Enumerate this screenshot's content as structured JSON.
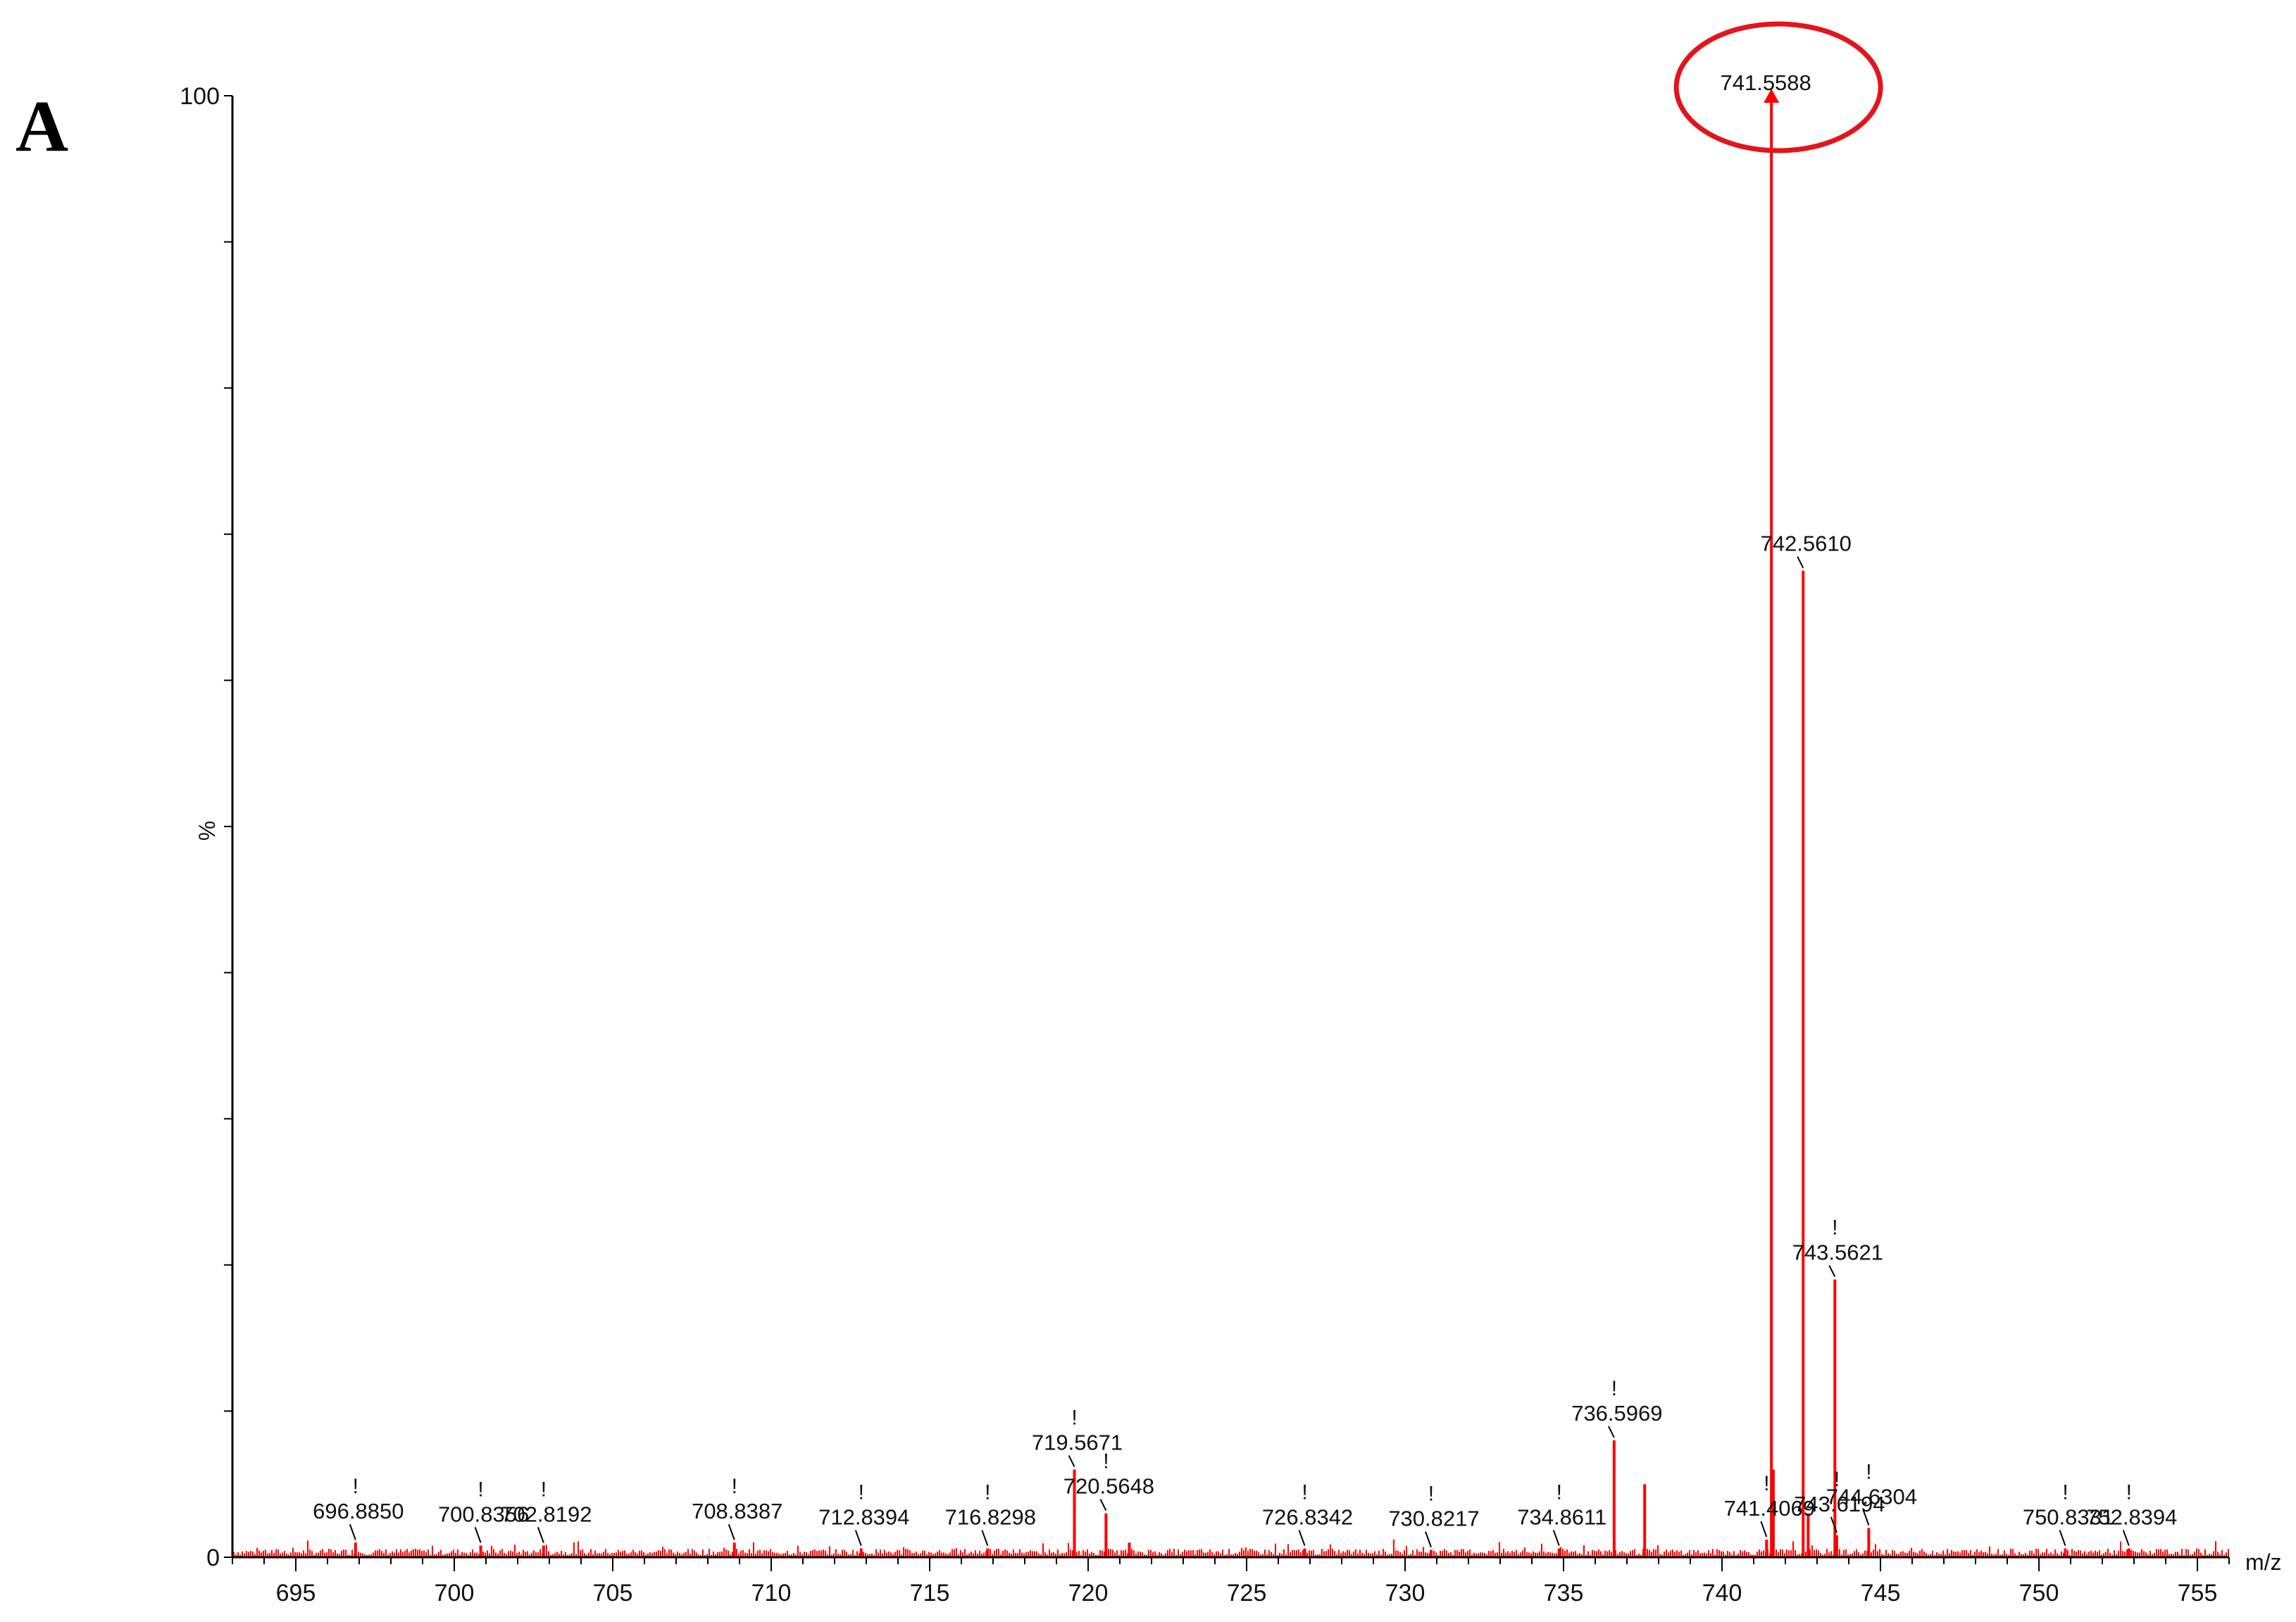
{
  "panel_label": "A",
  "chart_data": {
    "type": "line",
    "title": "",
    "xlabel": "m/z",
    "ylabel": "%",
    "xlim": [
      693,
      756
    ],
    "ylim": [
      0,
      100
    ],
    "x_ticks": [
      695,
      700,
      705,
      710,
      715,
      720,
      725,
      730,
      735,
      740,
      745,
      750,
      755
    ],
    "y_tick_labels": [
      "0",
      "100"
    ],
    "colors": {
      "spectrum": "#ff0000",
      "highlight": "#e3141b",
      "axis": "#000000"
    },
    "base_peak": {
      "label": "741.5588",
      "x": 741.5588,
      "y": 100,
      "highlighted": true
    },
    "peaks": [
      {
        "label": "696.8850",
        "x": 696.885,
        "y": 1.0,
        "marker": true
      },
      {
        "label": "700.8356",
        "x": 700.8356,
        "y": 0.8,
        "marker": true
      },
      {
        "label": "702.8192",
        "x": 702.8192,
        "y": 0.8,
        "marker": true
      },
      {
        "label": "708.8387",
        "x": 708.8387,
        "y": 1.0,
        "marker": true
      },
      {
        "label": "712.8394",
        "x": 712.8394,
        "y": 0.6,
        "marker": true
      },
      {
        "label": "716.8298",
        "x": 716.8298,
        "y": 0.6,
        "marker": true
      },
      {
        "label": "719.5671",
        "x": 719.5671,
        "y": 6.0,
        "marker": true
      },
      {
        "label": "720.5648",
        "x": 720.5648,
        "y": 3.0,
        "marker": true
      },
      {
        "label": "726.8342",
        "x": 726.8342,
        "y": 0.6,
        "marker": true
      },
      {
        "label": "730.8217",
        "x": 730.8217,
        "y": 0.5,
        "marker": true
      },
      {
        "label": "734.8611",
        "x": 734.8611,
        "y": 0.6,
        "marker": true
      },
      {
        "label": "736.5969",
        "x": 736.5969,
        "y": 8.0,
        "marker": true
      },
      {
        "label": "741.4069",
        "x": 741.4069,
        "y": 1.2,
        "marker": true
      },
      {
        "label": "742.5610",
        "x": 742.561,
        "y": 67.5,
        "marker": false
      },
      {
        "label": "743.5621",
        "x": 743.5621,
        "y": 19.0,
        "marker": true
      },
      {
        "label": "743.6194",
        "x": 743.6194,
        "y": 1.5,
        "marker": true
      },
      {
        "label": "744.6304",
        "x": 744.6304,
        "y": 2.0,
        "marker": true
      },
      {
        "label": "750.8331",
        "x": 750.8331,
        "y": 0.6,
        "marker": true
      },
      {
        "label": "752.8394",
        "x": 752.8394,
        "y": 0.6,
        "marker": true
      }
    ],
    "unlabeled_peaks": [
      {
        "x": 737.56,
        "y": 5.0
      },
      {
        "x": 741.62,
        "y": 6.0
      },
      {
        "x": 742.72,
        "y": 3.0
      },
      {
        "x": 721.3,
        "y": 1.0
      }
    ]
  }
}
